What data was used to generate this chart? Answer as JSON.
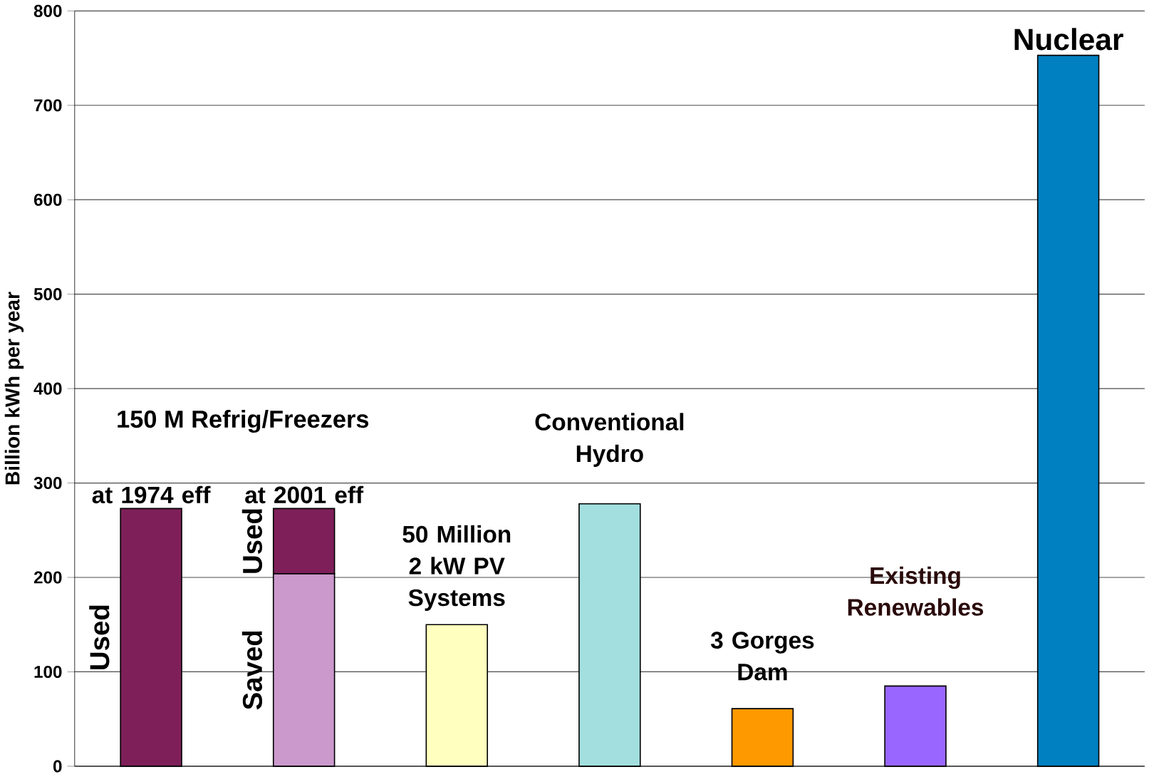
{
  "chart_data": {
    "type": "bar",
    "stacked": true,
    "ylabel": "Billion kWh per year",
    "categories": [
      "at 1974 eff",
      "at 2001 eff",
      "50 Million 2 kW PV Systems",
      "Conventional Hydro",
      "3 Gorges Dam",
      "Existing Renewables",
      "Nuclear"
    ],
    "series": [
      {
        "colors": [
          "#7f1f5a",
          "#cc99cc",
          "#ffffc0",
          "#a3dfdf",
          "#ff9900",
          "#9966ff",
          "#0080c0"
        ],
        "values": [
          273,
          204,
          150,
          278,
          61,
          85,
          753
        ]
      },
      {
        "color": "#7f1f5a",
        "values": [
          null,
          69,
          null,
          null,
          null,
          null,
          null
        ]
      }
    ],
    "ylim": [
      0,
      800
    ],
    "yticks": [
      0,
      100,
      200,
      300,
      400,
      500,
      600,
      700,
      800
    ],
    "grid": "y",
    "annotations": [
      "150 M Refrig/Freezers",
      "Used",
      "Saved",
      "Used"
    ]
  }
}
